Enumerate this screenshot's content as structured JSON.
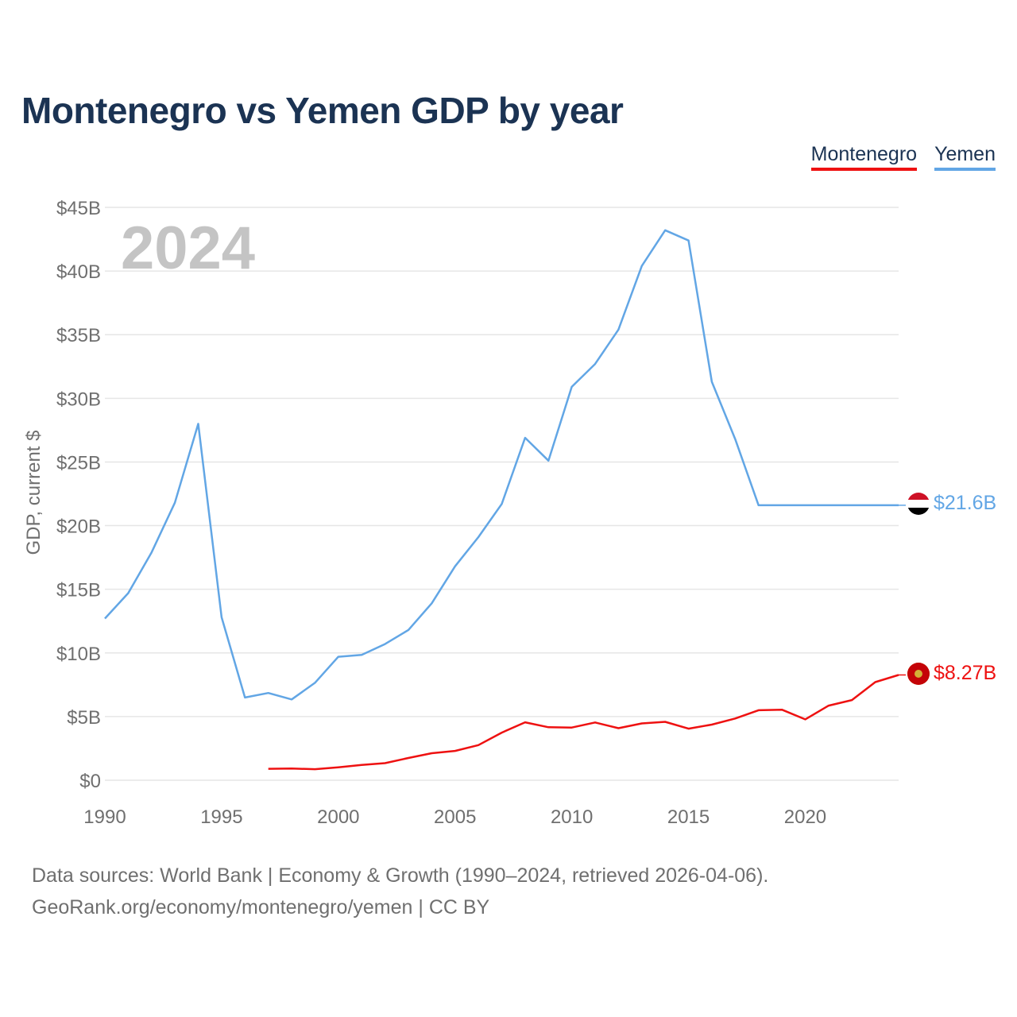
{
  "title": "Montenegro vs Yemen GDP by year",
  "footer": {
    "line1": "Data sources: World Bank | Economy & Growth (1990–2024, retrieved 2026-04-06).",
    "line2": "GeoRank.org/economy/montenegro/yemen | CC BY"
  },
  "colors": {
    "montenegro": "#ee1111",
    "yemen": "#62a6e5",
    "grid": "#e6e6e6",
    "text": "#6f6f6f",
    "title": "#1b3353",
    "year": "#c4c4c4"
  },
  "chart_data": {
    "type": "line",
    "title": "Montenegro vs Yemen GDP by year",
    "xlabel": "",
    "ylabel": "GDP, current $",
    "year_label": "2024",
    "xlim": [
      1990,
      2024
    ],
    "ylim": [
      0,
      45
    ],
    "x_ticks": [
      1990,
      1995,
      2000,
      2005,
      2010,
      2015,
      2020
    ],
    "y_ticks": [
      0,
      5,
      10,
      15,
      20,
      25,
      30,
      35,
      40,
      45
    ],
    "y_tick_labels": [
      "$0",
      "$5B",
      "$10B",
      "$15B",
      "$20B",
      "$25B",
      "$30B",
      "$35B",
      "$40B",
      "$45B"
    ],
    "legend_position": "top-right",
    "series": [
      {
        "name": "Montenegro",
        "key": "montenegro",
        "end_label": "$8.27B",
        "x": [
          1997,
          1998,
          1999,
          2000,
          2001,
          2002,
          2003,
          2004,
          2005,
          2006,
          2007,
          2008,
          2009,
          2010,
          2011,
          2012,
          2013,
          2014,
          2015,
          2016,
          2017,
          2018,
          2019,
          2020,
          2021,
          2022,
          2023,
          2024
        ],
        "values": [
          0.9,
          0.92,
          0.87,
          1.02,
          1.2,
          1.34,
          1.75,
          2.12,
          2.3,
          2.76,
          3.74,
          4.55,
          4.16,
          4.14,
          4.54,
          4.09,
          4.46,
          4.59,
          4.05,
          4.37,
          4.85,
          5.5,
          5.54,
          4.78,
          5.86,
          6.3,
          7.71,
          8.27
        ]
      },
      {
        "name": "Yemen",
        "key": "yemen",
        "end_label": "$21.6B",
        "x": [
          1990,
          1991,
          1992,
          1993,
          1994,
          1995,
          1996,
          1997,
          1998,
          1999,
          2000,
          2001,
          2002,
          2003,
          2004,
          2005,
          2006,
          2007,
          2008,
          2009,
          2010,
          2011,
          2012,
          2013,
          2014,
          2015,
          2016,
          2017,
          2018,
          2019,
          2020,
          2021,
          2022,
          2023,
          2024
        ],
        "values": [
          12.7,
          14.7,
          17.9,
          21.8,
          28.0,
          12.8,
          6.5,
          6.85,
          6.35,
          7.65,
          9.7,
          9.85,
          10.7,
          11.8,
          13.9,
          16.8,
          19.1,
          21.7,
          26.9,
          25.1,
          30.9,
          32.7,
          35.4,
          40.4,
          43.2,
          42.4,
          31.3,
          26.8,
          21.6,
          21.6,
          21.6,
          21.6,
          21.6,
          21.6,
          21.6
        ]
      }
    ]
  }
}
